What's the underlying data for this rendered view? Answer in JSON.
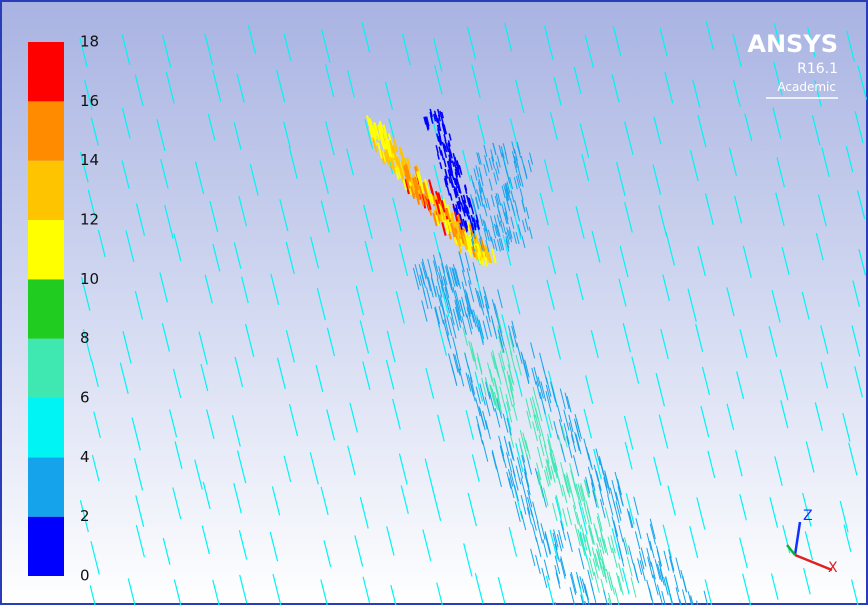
{
  "legend": {
    "ticks": [
      0,
      2,
      4,
      6,
      8,
      10,
      12,
      14,
      16,
      18
    ],
    "colors": [
      "#0000ff",
      "#15a4ec",
      "#00f4f4",
      "#3fe8b0",
      "#1fcc1f",
      "#ffff00",
      "#ffc400",
      "#ff8c00",
      "#ff0000"
    ]
  },
  "logo": {
    "name": "ANSYS",
    "version": "R16.1",
    "edition": "Academic"
  },
  "triad": {
    "z": "Z",
    "x": "X"
  }
}
